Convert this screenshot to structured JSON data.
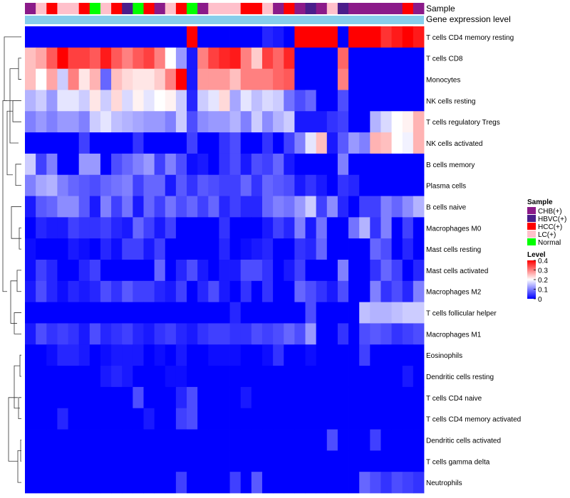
{
  "chart_data": {
    "type": "heatmap",
    "title": "",
    "annotation_labels": {
      "sample": "Sample",
      "expression": "Gene expression level"
    },
    "sample_colors": {
      "CHB(+)": "#8b1a89",
      "HBVC(+)": "#4b1e8b",
      "HCC(+)": "#ff0000",
      "LC(+)": "#ffc0cb",
      "Normal": "#00ff00"
    },
    "expression_bar_color": "#87ceeb",
    "columns": [
      "CHB(+)",
      "LC(+)",
      "HCC(+)",
      "LC(+)",
      "LC(+)",
      "HCC(+)",
      "Normal",
      "LC(+)",
      "HCC(+)",
      "HBVC(+)",
      "Normal",
      "HCC(+)",
      "CHB(+)",
      "LC(+)",
      "HCC(+)",
      "Normal",
      "CHB(+)",
      "LC(+)",
      "LC(+)",
      "LC(+)",
      "HCC(+)",
      "HCC(+)",
      "LC(+)",
      "CHB(+)",
      "HCC(+)",
      "CHB(+)",
      "HBVC(+)",
      "CHB(+)",
      "LC(+)",
      "HBVC(+)",
      "CHB(+)",
      "CHB(+)",
      "CHB(+)",
      "CHB(+)",
      "CHB(+)",
      "HCC(+)",
      "CHB(+)"
    ],
    "rows": [
      "T cells CD4 memory resting",
      "T cells CD8",
      "Monocytes",
      "NK cells resting",
      "T cells regulatory  Tregs",
      "NK cells activated",
      "B cells memory",
      "Plasma cells",
      "B cells naive",
      "Macrophages M0",
      "Mast cells resting",
      "Mast cells activated",
      "Macrophages M2",
      "T cells follicular helper",
      "Macrophages M1",
      "Eosinophils",
      "Dendritic cells resting",
      "T cells CD4 naive",
      "T cells CD4 memory activated",
      "Dendritic cells activated",
      "T cells gamma delta",
      "Neutrophils"
    ],
    "values": [
      [
        0,
        0,
        0,
        0,
        0,
        0,
        0,
        0,
        0,
        0,
        0,
        0,
        0,
        0,
        0,
        0.4,
        0,
        0,
        0,
        0,
        0,
        0,
        0.03,
        0.02,
        0,
        0.4,
        0.4,
        0.4,
        0.4,
        0,
        0.4,
        0.4,
        0.4,
        0.36,
        0.38,
        0.4,
        0.38
      ],
      [
        0.25,
        0.27,
        0.33,
        0.4,
        0.35,
        0.35,
        0.33,
        0.38,
        0.33,
        0.3,
        0.33,
        0.35,
        0.3,
        0.2,
        0.12,
        0.02,
        0.3,
        0.35,
        0.37,
        0.38,
        0.3,
        0.24,
        0.35,
        0.32,
        0.37,
        0,
        0,
        0,
        0,
        0.32,
        0,
        0,
        0,
        0,
        0,
        0,
        0
      ],
      [
        0.25,
        0.2,
        0.27,
        0.16,
        0.3,
        0.22,
        0.26,
        0.08,
        0.25,
        0.23,
        0.22,
        0.22,
        0.24,
        0.3,
        0.4,
        0.02,
        0.28,
        0.28,
        0.28,
        0.25,
        0.3,
        0.3,
        0.3,
        0.32,
        0.33,
        0,
        0,
        0,
        0,
        0.3,
        0,
        0,
        0,
        0,
        0,
        0,
        0
      ],
      [
        0.14,
        0.16,
        0.12,
        0.18,
        0.18,
        0.16,
        0.22,
        0.16,
        0.23,
        0.17,
        0.21,
        0.18,
        0.2,
        0.21,
        0.16,
        0.03,
        0.16,
        0.18,
        0.23,
        0.13,
        0.18,
        0.15,
        0.17,
        0.16,
        0.09,
        0.06,
        0.08,
        0,
        0,
        0.06,
        0,
        0,
        0,
        0,
        0,
        0,
        0
      ],
      [
        0.1,
        0.12,
        0.1,
        0.12,
        0.12,
        0.1,
        0.16,
        0.18,
        0.15,
        0.14,
        0.13,
        0.12,
        0.12,
        0.1,
        0.16,
        0.06,
        0.11,
        0.12,
        0.12,
        0.14,
        0.1,
        0.16,
        0.11,
        0.14,
        0.16,
        0.02,
        0.02,
        0.02,
        0.04,
        0.05,
        0,
        0,
        0.14,
        0.17,
        0.2,
        0.21,
        0.26
      ],
      [
        0,
        0,
        0,
        0,
        0,
        0.05,
        0,
        0,
        0,
        0,
        0.04,
        0,
        0,
        0,
        0,
        0.05,
        0,
        0,
        0.04,
        0.06,
        0,
        0,
        0.04,
        0,
        0.05,
        0.1,
        0.18,
        0.25,
        0.02,
        0.07,
        0.12,
        0.1,
        0.26,
        0.25,
        0.2,
        0.19,
        0.26
      ],
      [
        0.16,
        0.05,
        0.1,
        0,
        0,
        0.12,
        0.12,
        0,
        0.06,
        0.08,
        0.1,
        0.12,
        0.05,
        0.1,
        0.06,
        0.01,
        0.02,
        0,
        0.04,
        0.06,
        0.02,
        0.06,
        0.05,
        0.08,
        0.02,
        0,
        0,
        0,
        0,
        0.1,
        0,
        0,
        0,
        0,
        0,
        0,
        0
      ],
      [
        0.1,
        0.13,
        0.14,
        0.1,
        0.08,
        0.07,
        0.06,
        0.08,
        0.09,
        0.1,
        0.05,
        0.08,
        0.08,
        0.02,
        0.07,
        0.04,
        0.07,
        0.06,
        0.05,
        0.05,
        0.08,
        0.04,
        0.08,
        0.07,
        0.06,
        0.02,
        0.04,
        0.02,
        0,
        0.04,
        0.03,
        0,
        0,
        0,
        0,
        0,
        0
      ],
      [
        0.02,
        0.07,
        0.08,
        0.11,
        0.11,
        0.07,
        0.02,
        0.1,
        0.05,
        0.09,
        0.02,
        0.08,
        0.05,
        0.09,
        0.06,
        0.08,
        0.05,
        0.08,
        0.03,
        0.05,
        0.03,
        0.03,
        0.08,
        0.1,
        0.09,
        0.12,
        0.16,
        0.05,
        0.11,
        0.03,
        0,
        0.05,
        0.05,
        0.1,
        0.08,
        0.11,
        0.14
      ],
      [
        0,
        0.03,
        0.02,
        0.02,
        0.05,
        0.04,
        0.04,
        0.05,
        0.03,
        0.02,
        0.08,
        0.05,
        0.02,
        0.05,
        0,
        0,
        0,
        0,
        0.04,
        0,
        0,
        0,
        0.02,
        0.05,
        0.03,
        0.1,
        0.02,
        0.09,
        0,
        0,
        0.09,
        0.14,
        0.04,
        0.1,
        0,
        0.05,
        0
      ],
      [
        0.01,
        0,
        0,
        0,
        0.02,
        0.01,
        0,
        0.03,
        0.01,
        0.05,
        0.05,
        0.02,
        0.05,
        0,
        0,
        0,
        0,
        0,
        0.03,
        0,
        0.01,
        0.02,
        0.03,
        0,
        0,
        0.04,
        0.03,
        0.08,
        0,
        0,
        0,
        0,
        0.08,
        0.06,
        0,
        0.03,
        0
      ],
      [
        0.01,
        0.05,
        0.03,
        0,
        0,
        0.03,
        0.05,
        0,
        0,
        0,
        0,
        0,
        0.08,
        0,
        0.03,
        0.06,
        0.02,
        0,
        0.02,
        0.02,
        0.06,
        0.06,
        0.04,
        0,
        0.02,
        0.05,
        0,
        0,
        0,
        0.1,
        0,
        0,
        0.04,
        0.08,
        0.05,
        0,
        0.03
      ],
      [
        0.02,
        0.06,
        0.03,
        0.01,
        0.03,
        0.02,
        0.03,
        0.06,
        0.04,
        0.07,
        0.05,
        0.05,
        0.03,
        0.02,
        0.05,
        0,
        0.03,
        0.06,
        0.02,
        0,
        0.04,
        0,
        0.04,
        0,
        0,
        0.08,
        0.06,
        0.04,
        0.02,
        0.06,
        0,
        0,
        0.1,
        0.04,
        0.06,
        0.03,
        0.1
      ],
      [
        0,
        0,
        0,
        0,
        0,
        0,
        0,
        0,
        0,
        0,
        0,
        0,
        0,
        0,
        0,
        0,
        0,
        0,
        0,
        0.03,
        0,
        0,
        0,
        0,
        0,
        0,
        0.06,
        0,
        0,
        0,
        0,
        0.15,
        0.14,
        0.14,
        0.15,
        0.16,
        0.16
      ],
      [
        0.02,
        0.06,
        0.04,
        0.05,
        0.04,
        0.02,
        0.06,
        0.03,
        0.04,
        0.05,
        0.03,
        0.02,
        0.04,
        0.05,
        0.03,
        0.02,
        0.04,
        0.05,
        0.05,
        0.04,
        0.04,
        0.06,
        0.05,
        0.06,
        0.08,
        0.06,
        0.12,
        0,
        0,
        0.04,
        0,
        0.06,
        0.07,
        0.06,
        0.04,
        0.05,
        0.06
      ],
      [
        0,
        0,
        0.01,
        0.03,
        0.03,
        0.02,
        0,
        0.01,
        0.02,
        0.02,
        0.02,
        0,
        0.01,
        0,
        0.02,
        0,
        0,
        0.01,
        0.01,
        0.01,
        0,
        0,
        0.01,
        0.04,
        0,
        0,
        0.01,
        0,
        0,
        0,
        0,
        0.05,
        0,
        0,
        0,
        0,
        0
      ],
      [
        0,
        0,
        0,
        0,
        0,
        0,
        0,
        0.02,
        0.03,
        0.02,
        0,
        0,
        0,
        0.01,
        0.01,
        0,
        0,
        0,
        0,
        0,
        0,
        0,
        0,
        0,
        0,
        0,
        0,
        0,
        0,
        0,
        0,
        0,
        0,
        0,
        0,
        0.02,
        0
      ],
      [
        0,
        0,
        0,
        0,
        0,
        0,
        0,
        0,
        0,
        0,
        0.06,
        0,
        0,
        0,
        0.03,
        0.06,
        0,
        0,
        0,
        0,
        0.02,
        0,
        0,
        0,
        0,
        0,
        0,
        0,
        0,
        0,
        0,
        0,
        0,
        0,
        0,
        0,
        0
      ],
      [
        0,
        0,
        0,
        0.03,
        0,
        0,
        0,
        0,
        0,
        0,
        0,
        0.02,
        0,
        0,
        0.05,
        0.06,
        0,
        0,
        0,
        0,
        0,
        0,
        0,
        0,
        0,
        0,
        0,
        0,
        0,
        0,
        0,
        0,
        0,
        0,
        0,
        0,
        0
      ],
      [
        0,
        0,
        0,
        0,
        0,
        0,
        0,
        0,
        0,
        0,
        0,
        0,
        0,
        0,
        0,
        0,
        0,
        0,
        0,
        0,
        0,
        0,
        0,
        0,
        0,
        0,
        0,
        0,
        0.06,
        0,
        0,
        0,
        0.05,
        0,
        0,
        0,
        0
      ],
      [
        0,
        0,
        0,
        0,
        0,
        0,
        0,
        0,
        0,
        0,
        0,
        0,
        0,
        0,
        0,
        0,
        0,
        0,
        0,
        0,
        0,
        0,
        0,
        0,
        0,
        0,
        0,
        0,
        0,
        0,
        0,
        0,
        0,
        0,
        0,
        0,
        0
      ],
      [
        0,
        0,
        0,
        0,
        0,
        0,
        0,
        0,
        0,
        0,
        0,
        0,
        0,
        0,
        0.05,
        0,
        0,
        0,
        0,
        0.05,
        0,
        0.07,
        0,
        0,
        0,
        0,
        0,
        0,
        0,
        0,
        0,
        0.08,
        0.06,
        0.04,
        0.06,
        0.05,
        0.04
      ]
    ],
    "color_scale": {
      "low": "#0000ff",
      "mid": "#ffffff",
      "high": "#ff0000",
      "range": [
        0,
        0.4
      ]
    },
    "legend": {
      "sample_title": "Sample",
      "sample_entries": [
        "CHB(+)",
        "HBVC(+)",
        "HCC(+)",
        "LC(+)",
        "Normal"
      ],
      "level_title": "Level",
      "level_ticks": [
        "0.4",
        "0.3",
        "0.2",
        "0.1",
        "0"
      ],
      "placement": "right"
    },
    "row_dendrogram": true
  }
}
